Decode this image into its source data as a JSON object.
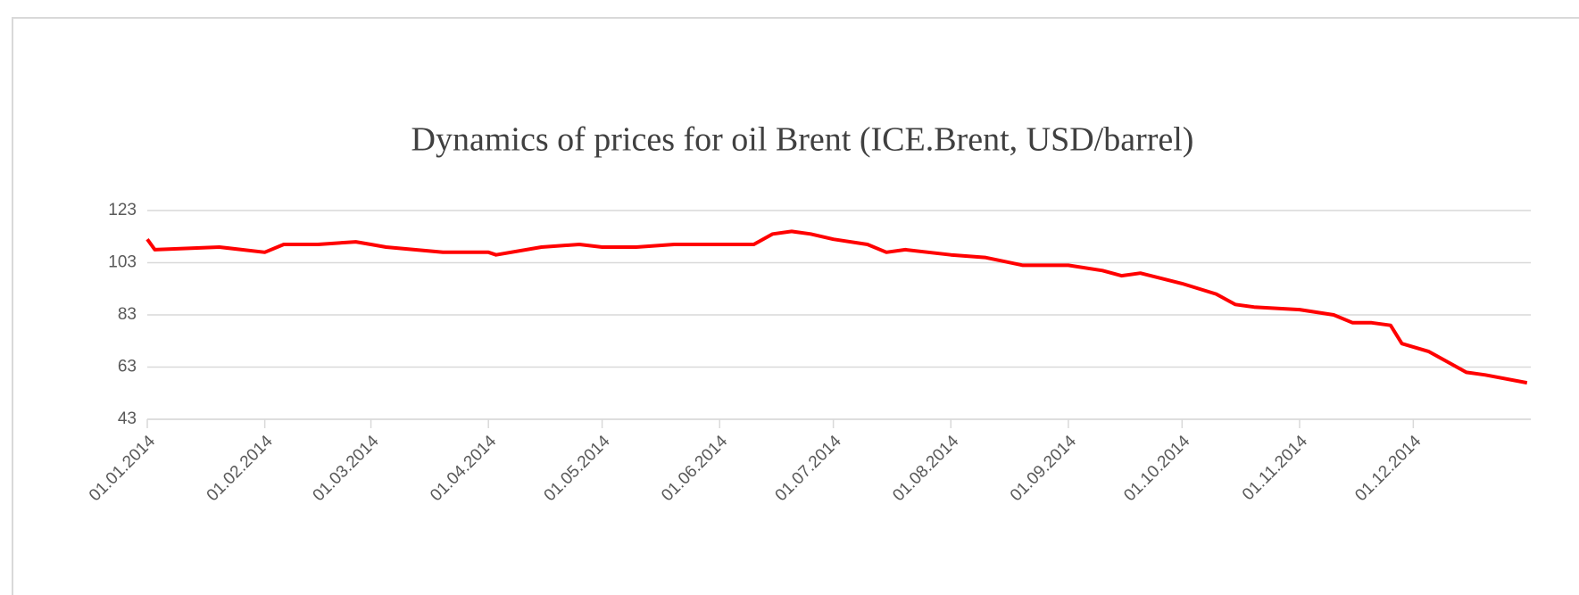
{
  "chart_data": {
    "type": "line",
    "title": "Dynamics of prices for oil Brent (ICE.Brent, USD/barrel)",
    "x": [
      "01.01.2014",
      "03.01.2014",
      "20.01.2014",
      "01.02.2014",
      "06.02.2014",
      "15.02.2014",
      "25.02.2014",
      "01.03.2014",
      "05.03.2014",
      "20.03.2014",
      "01.04.2014",
      "03.04.2014",
      "15.04.2014",
      "25.04.2014",
      "01.05.2014",
      "10.05.2014",
      "20.05.2014",
      "01.06.2014",
      "10.06.2014",
      "15.06.2014",
      "20.06.2014",
      "25.06.2014",
      "01.07.2014",
      "10.07.2014",
      "15.07.2014",
      "20.07.2014",
      "01.08.2014",
      "10.08.2014",
      "20.08.2014",
      "01.09.2014",
      "10.09.2014",
      "15.09.2014",
      "20.09.2014",
      "01.10.2014",
      "10.10.2014",
      "15.10.2014",
      "20.10.2014",
      "01.11.2014",
      "10.11.2014",
      "15.11.2014",
      "20.11.2014",
      "25.11.2014",
      "28.11.2014",
      "05.12.2014",
      "10.12.2014",
      "15.12.2014",
      "20.12.2014",
      "31.12.2014"
    ],
    "series": [
      {
        "name": "ICE.Brent",
        "color": "#ff0000",
        "values": [
          112,
          108,
          109,
          107,
          110,
          110,
          111,
          110,
          109,
          107,
          107,
          106,
          109,
          110,
          109,
          109,
          110,
          110,
          110,
          114,
          115,
          114,
          112,
          110,
          107,
          108,
          106,
          105,
          102,
          102,
          100,
          98,
          99,
          95,
          91,
          87,
          86,
          85,
          83,
          80,
          80,
          79,
          72,
          69,
          65,
          61,
          60,
          57
        ]
      }
    ],
    "xlim": [
      "01.01.2014",
      "01.01.2015"
    ],
    "xticks": [
      "01.01.2014",
      "01.02.2014",
      "01.03.2014",
      "01.04.2014",
      "01.05.2014",
      "01.06.2014",
      "01.07.2014",
      "01.08.2014",
      "01.09.2014",
      "01.10.2014",
      "01.11.2014",
      "01.12.2014"
    ],
    "ylim": [
      43,
      123
    ],
    "yticks": [
      43,
      63,
      83,
      103,
      123
    ],
    "grid": true
  }
}
